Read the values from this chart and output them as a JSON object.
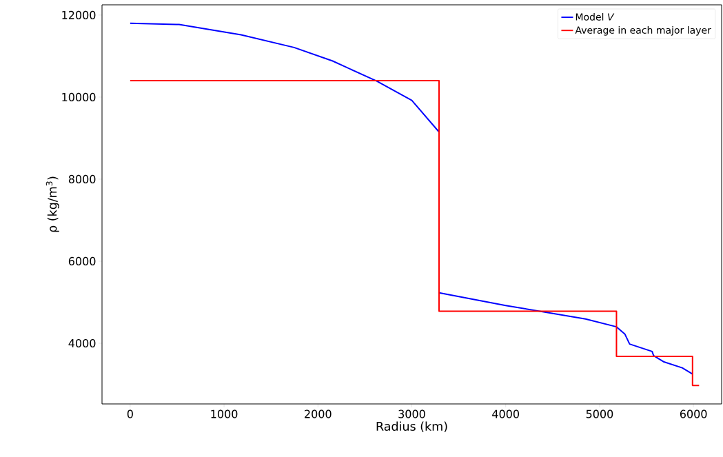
{
  "chart_data": {
    "type": "line",
    "xlabel": "Radius (km)",
    "ylabel": "ρ (kg/m$^{3}$)",
    "xlim": [
      -300,
      6300
    ],
    "ylim": [
      2520,
      12250
    ],
    "xticks": [
      0,
      1000,
      2000,
      3000,
      4000,
      5000,
      6000
    ],
    "yticks": [
      4000,
      6000,
      8000,
      10000,
      12000
    ],
    "legend": "top right",
    "grid": false,
    "series": [
      {
        "name": "Model *V*",
        "color": "#0000ff",
        "x": [
          0,
          521,
          1181,
          1746,
          2157,
          2626,
          3000,
          3290,
          3290,
          4000,
          4850,
          5180,
          5270,
          5320,
          5560,
          5575,
          5680,
          5880,
          5990
        ],
        "values": [
          11800,
          11770,
          11520,
          11210,
          10880,
          10390,
          9920,
          9150,
          5230,
          4920,
          4590,
          4400,
          4220,
          3980,
          3800,
          3700,
          3550,
          3400,
          3250
        ]
      },
      {
        "name": "Average in each major layer",
        "color": "#ff0000",
        "x": [
          0,
          3290,
          3290,
          5180,
          5180,
          5990,
          5990,
          6060
        ],
        "values": [
          10400,
          10400,
          4780,
          4780,
          3680,
          3680,
          2970,
          2970
        ]
      }
    ]
  }
}
